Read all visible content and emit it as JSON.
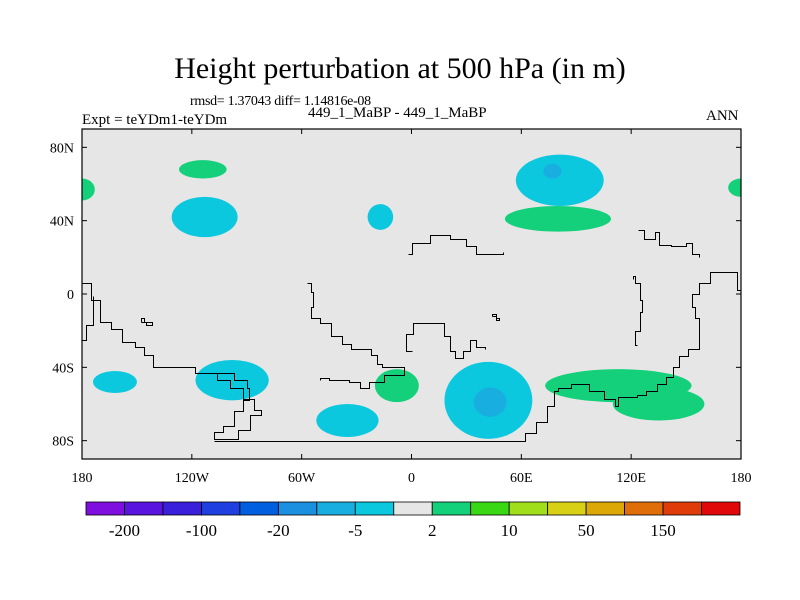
{
  "chart_data": {
    "type": "contour-map",
    "title": "Height perturbation at 500 hPa (in m)",
    "stats_text": "rmsd= 1.37043 diff= 1.14816e-08",
    "left_label": "Expt = teYDm1-teYDm",
    "center_label": "449_1_MaBP - 449_1_MaBP",
    "right_label": "ANN",
    "xlim": [
      -180,
      180
    ],
    "ylim": [
      -90,
      90
    ],
    "x_ticks": [
      {
        "value": -180,
        "label": "180"
      },
      {
        "value": -120,
        "label": "120W"
      },
      {
        "value": -60,
        "label": "60W"
      },
      {
        "value": 0,
        "label": "0"
      },
      {
        "value": 60,
        "label": "60E"
      },
      {
        "value": 120,
        "label": "120E"
      },
      {
        "value": 180,
        "label": "180"
      }
    ],
    "y_ticks": [
      {
        "value": 80,
        "label": "80N"
      },
      {
        "value": 40,
        "label": "40N"
      },
      {
        "value": 0,
        "label": "0"
      },
      {
        "value": -40,
        "label": "40S"
      },
      {
        "value": -80,
        "label": "80S"
      }
    ],
    "background_color": "#e6e6e6",
    "colorbar": {
      "colors": [
        "#7f0fdf",
        "#5a14e0",
        "#3a1fdb",
        "#1f3fe0",
        "#005fdf",
        "#1b8fe0",
        "#18aee0",
        "#0cc8df",
        "#e6e6e6",
        "#14d07a",
        "#3ad814",
        "#a0de1c",
        "#d8d014",
        "#dca808",
        "#e06e08",
        "#e03c0a",
        "#e00808"
      ],
      "tick_labels": [
        "-200",
        "-100",
        "-20",
        "-5",
        "2",
        "10",
        "50",
        "150"
      ],
      "tick_boundaries": [
        1,
        3,
        5,
        7,
        9,
        11,
        13,
        15
      ]
    },
    "anomaly_regions": [
      {
        "sign": "negative",
        "color": "#0cc8df",
        "lon": 81,
        "lat": 62,
        "rx": 24,
        "ry": 14
      },
      {
        "sign": "negative",
        "color": "#18aee0",
        "lon": 77,
        "lat": 67,
        "rx": 5,
        "ry": 4
      },
      {
        "sign": "negative",
        "color": "#0cc8df",
        "lon": -113,
        "lat": 42,
        "rx": 18,
        "ry": 11
      },
      {
        "sign": "negative",
        "color": "#0cc8df",
        "lon": -17,
        "lat": 42,
        "rx": 7,
        "ry": 7
      },
      {
        "sign": "negative",
        "color": "#0cc8df",
        "lon": -98,
        "lat": -47,
        "rx": 20,
        "ry": 11
      },
      {
        "sign": "negative",
        "color": "#0cc8df",
        "lon": -162,
        "lat": -48,
        "rx": 12,
        "ry": 6
      },
      {
        "sign": "negative",
        "color": "#0cc8df",
        "lon": -35,
        "lat": -69,
        "rx": 17,
        "ry": 9
      },
      {
        "sign": "negative",
        "color": "#0cc8df",
        "lon": 42,
        "lat": -58,
        "rx": 24,
        "ry": 21
      },
      {
        "sign": "negative",
        "color": "#18aee0",
        "lon": 43,
        "lat": -59,
        "rx": 9,
        "ry": 8
      },
      {
        "sign": "positive",
        "color": "#14d07a",
        "lon": -114,
        "lat": 68,
        "rx": 13,
        "ry": 5
      },
      {
        "sign": "positive",
        "color": "#14d07a",
        "lon": -180,
        "lat": 57,
        "rx": 7,
        "ry": 6
      },
      {
        "sign": "positive",
        "color": "#14d07a",
        "lon": 180,
        "lat": 58,
        "rx": 7,
        "ry": 5
      },
      {
        "sign": "positive",
        "color": "#14d07a",
        "lon": 80,
        "lat": 41,
        "rx": 29,
        "ry": 7
      },
      {
        "sign": "positive",
        "color": "#14d07a",
        "lon": -8,
        "lat": -50,
        "rx": 12,
        "ry": 9
      },
      {
        "sign": "positive",
        "color": "#14d07a",
        "lon": 113,
        "lat": -50,
        "rx": 40,
        "ry": 9
      },
      {
        "sign": "positive",
        "color": "#14d07a",
        "lon": 135,
        "lat": -60,
        "rx": 25,
        "ry": 9
      }
    ],
    "coastline_outlines": [
      [
        [
          -180,
          6
        ],
        [
          -175,
          -3
        ],
        [
          -170,
          -15
        ],
        [
          -164,
          -19
        ],
        [
          -158,
          -26
        ],
        [
          -151,
          -29
        ],
        [
          -146,
          -33
        ],
        [
          -141,
          -40
        ],
        [
          -132,
          -40
        ],
        [
          -125,
          -40
        ],
        [
          -118,
          -43
        ],
        [
          -103,
          -43
        ],
        [
          -97,
          -47
        ],
        [
          -90,
          -51
        ],
        [
          -89,
          -58
        ],
        [
          -92,
          -64
        ],
        [
          -97,
          -72
        ],
        [
          -103,
          -75
        ],
        [
          -108,
          -79
        ],
        [
          -98,
          -79
        ],
        [
          -95,
          -74
        ],
        [
          -88,
          -66
        ],
        [
          -82,
          -63
        ],
        [
          -86,
          -57
        ],
        [
          -92,
          -51
        ],
        [
          -99,
          -47
        ],
        [
          -106,
          -43
        ]
      ],
      [
        [
          -108,
          -80
        ],
        [
          -60,
          -80
        ],
        [
          -30,
          -80
        ],
        [
          0,
          -80
        ],
        [
          30,
          -80
        ],
        [
          60,
          -80
        ],
        [
          62,
          -76
        ],
        [
          68,
          -70
        ],
        [
          74,
          -61
        ],
        [
          78,
          -53
        ],
        [
          80,
          -51
        ],
        [
          87,
          -49
        ],
        [
          97,
          -53
        ],
        [
          105,
          -57
        ],
        [
          111,
          -61
        ],
        [
          113,
          -56
        ],
        [
          123,
          -55
        ],
        [
          128,
          -53
        ],
        [
          134,
          -49
        ],
        [
          139,
          -45
        ],
        [
          143,
          -40
        ],
        [
          146,
          -34
        ],
        [
          151,
          -30
        ],
        [
          157,
          -24
        ],
        [
          157,
          -13
        ],
        [
          155,
          -7
        ],
        [
          153,
          0
        ],
        [
          157,
          6
        ],
        [
          163,
          12
        ],
        [
          171,
          12
        ],
        [
          178,
          2
        ],
        [
          180,
          0
        ]
      ],
      [
        [
          -57,
          6
        ],
        [
          -55,
          1
        ],
        [
          -54,
          -7
        ],
        [
          -55,
          -13
        ],
        [
          -50,
          -16
        ],
        [
          -44,
          -23
        ],
        [
          -38,
          -27
        ],
        [
          -33,
          -30
        ],
        [
          -27,
          -30
        ],
        [
          -22,
          -33
        ],
        [
          -19,
          -38
        ],
        [
          -16,
          -40
        ],
        [
          -4,
          -40
        ],
        [
          -4,
          -44
        ],
        [
          -15,
          -48
        ],
        [
          -23,
          -51
        ],
        [
          -28,
          -48
        ],
        [
          -34,
          -47
        ],
        [
          -45,
          -46
        ],
        [
          -50,
          -47
        ]
      ],
      [
        [
          0,
          -31
        ],
        [
          -3,
          -22
        ],
        [
          1,
          -16
        ],
        [
          11,
          -16
        ],
        [
          18,
          -23
        ],
        [
          21,
          -31
        ],
        [
          24,
          -35
        ],
        [
          28,
          -31
        ],
        [
          32,
          -25
        ],
        [
          35,
          -29
        ],
        [
          40,
          -30
        ]
      ],
      [
        [
          -2,
          22
        ],
        [
          0,
          28
        ],
        [
          10,
          32
        ],
        [
          21,
          30
        ],
        [
          30,
          26
        ],
        [
          35,
          22
        ],
        [
          42,
          22
        ],
        [
          50,
          23
        ]
      ],
      [
        [
          124,
          35
        ],
        [
          127,
          30
        ],
        [
          133,
          34
        ],
        [
          135,
          27
        ],
        [
          142,
          26
        ],
        [
          150,
          28
        ],
        [
          153,
          22
        ],
        [
          157,
          20
        ]
      ],
      [
        [
          -180,
          -25
        ],
        [
          -178,
          -17
        ],
        [
          -174,
          -7
        ],
        [
          -174,
          -1
        ]
      ],
      [
        [
          -148,
          -15
        ],
        [
          -145,
          -17
        ],
        [
          -142,
          -15
        ],
        [
          -146,
          -13
        ],
        [
          -148,
          -15
        ]
      ],
      [
        [
          123,
          -28
        ],
        [
          122,
          -20
        ],
        [
          125,
          -10
        ],
        [
          126,
          -3
        ],
        [
          125,
          6
        ],
        [
          122,
          10
        ],
        [
          121,
          8
        ]
      ],
      [
        [
          44,
          -12
        ],
        [
          46,
          -14
        ],
        [
          48,
          -13
        ],
        [
          46,
          -11
        ],
        [
          44,
          -12
        ]
      ]
    ]
  }
}
